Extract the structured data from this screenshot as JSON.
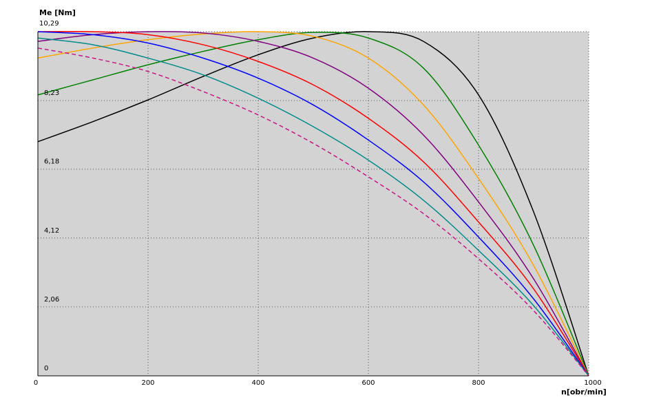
{
  "chart_data": {
    "type": "line",
    "title": "",
    "ylabel": "Me [Nm]",
    "xlabel": "n[obr/min]",
    "xlim": [
      0,
      1000
    ],
    "ylim": [
      0,
      10.29
    ],
    "x_ticks": [
      "0",
      "200",
      "400",
      "600",
      "800",
      "1000"
    ],
    "y_ticks": [
      "0",
      "2,06",
      "4,12",
      "6,18",
      "8,23",
      "10,29"
    ],
    "grid": true,
    "background": "#d3d3d3",
    "x": [
      0,
      100,
      200,
      300,
      400,
      500,
      600,
      700,
      800,
      900,
      1000
    ],
    "series": [
      {
        "color": "#000000",
        "dash": false,
        "values": [
          7.0,
          7.6,
          8.25,
          8.95,
          9.6,
          10.1,
          10.29,
          10.0,
          8.4,
          4.9,
          0
        ]
      },
      {
        "color": "#008000",
        "dash": false,
        "values": [
          8.4,
          8.85,
          9.3,
          9.7,
          10.05,
          10.27,
          10.1,
          9.2,
          6.9,
          3.9,
          0
        ]
      },
      {
        "color": "#ffa500",
        "dash": false,
        "values": [
          9.5,
          9.8,
          10.05,
          10.22,
          10.29,
          10.15,
          9.5,
          8.1,
          5.9,
          3.3,
          0
        ]
      },
      {
        "color": "#800080",
        "dash": false,
        "values": [
          10.0,
          10.2,
          10.29,
          10.25,
          10.0,
          9.5,
          8.6,
          7.2,
          5.2,
          2.9,
          0
        ]
      },
      {
        "color": "#ff0000",
        "dash": false,
        "values": [
          10.29,
          10.29,
          10.2,
          9.9,
          9.4,
          8.7,
          7.7,
          6.4,
          4.6,
          2.6,
          0
        ]
      },
      {
        "color": "#0000ff",
        "dash": false,
        "values": [
          10.29,
          10.2,
          9.95,
          9.5,
          8.9,
          8.1,
          7.05,
          5.8,
          4.15,
          2.3,
          0
        ]
      },
      {
        "color": "#008b8b",
        "dash": false,
        "values": [
          10.1,
          9.9,
          9.5,
          9.0,
          8.3,
          7.45,
          6.45,
          5.25,
          3.75,
          2.1,
          0
        ]
      },
      {
        "color": "#c71585",
        "dash": true,
        "values": [
          9.8,
          9.5,
          9.1,
          8.5,
          7.8,
          6.95,
          5.95,
          4.85,
          3.5,
          1.95,
          0
        ]
      }
    ]
  }
}
